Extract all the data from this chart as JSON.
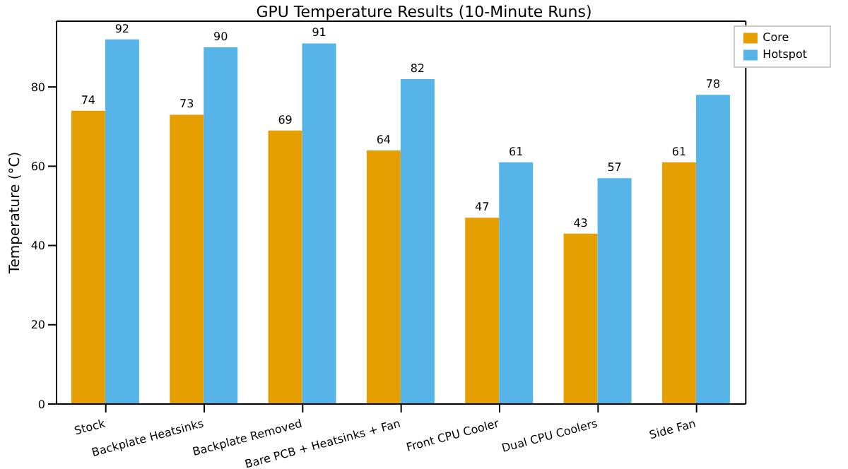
{
  "chart_data": {
    "type": "bar",
    "title": "GPU Temperature Results (10-Minute Runs)",
    "ylabel": "Temperature (°C)",
    "categories": [
      "Stock",
      "Backplate Heatsinks",
      "Backplate Removed",
      "Bare PCB + Heatsinks + Fan",
      "Front CPU Cooler",
      "Dual CPU Coolers",
      "Side Fan"
    ],
    "series": [
      {
        "name": "Core",
        "color": "#e69f00",
        "values": [
          74,
          73,
          69,
          64,
          47,
          43,
          61
        ]
      },
      {
        "name": "Hotspot",
        "color": "#56b4e9",
        "values": [
          92,
          90,
          91,
          82,
          61,
          57,
          78
        ]
      }
    ],
    "ylim": [
      0,
      96.6
    ],
    "yticks": [
      0,
      20,
      40,
      60,
      80
    ],
    "data_labels": true,
    "legend": "top right",
    "grid": false
  }
}
